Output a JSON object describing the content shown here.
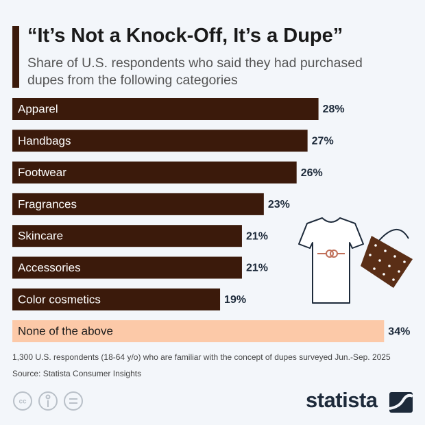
{
  "chart_data": {
    "type": "bar",
    "title": "“It’s Not a Knock-Off, It’s a Dupe”",
    "subtitle": "Share of U.S. respondents who said they had purchased dupes from the following categories",
    "categories": [
      "Apparel",
      "Handbags",
      "Footwear",
      "Fragrances",
      "Skincare",
      "Accessories",
      "Color cosmetics",
      "None of the above"
    ],
    "values": [
      28,
      27,
      26,
      23,
      21,
      21,
      19,
      34
    ],
    "value_labels": [
      "28%",
      "27%",
      "26%",
      "23%",
      "21%",
      "21%",
      "19%",
      "34%"
    ],
    "colors": [
      "#3b1a0b",
      "#3b1a0b",
      "#3b1a0b",
      "#3b1a0b",
      "#3b1a0b",
      "#3b1a0b",
      "#3b1a0b",
      "#fcc9a8"
    ],
    "footnote": "1,300 U.S. respondents (18-64 y/o) who are familiar with the concept of dupes surveyed Jun.-Sep. 2025",
    "source": "Source: Statista Consumer Insights",
    "brand": "statista"
  }
}
